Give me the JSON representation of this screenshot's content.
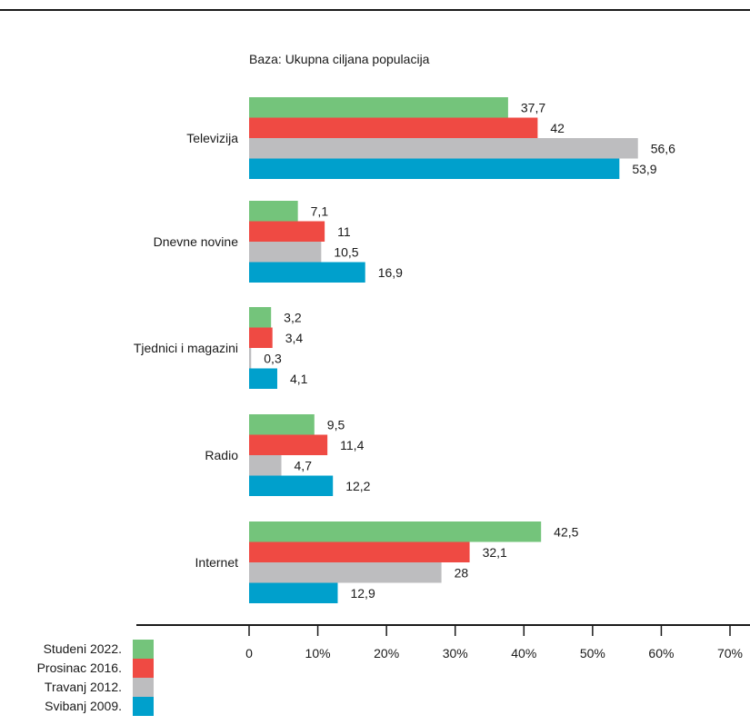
{
  "chart_data": {
    "type": "bar",
    "orientation": "horizontal",
    "subtitle": "Baza: Ukupna ciljana populacija",
    "categories": [
      "Televizija",
      "Dnevne novine",
      "Tjednici i magazini",
      "Radio",
      "Internet"
    ],
    "series": [
      {
        "name": "Studeni 2022.",
        "color": "#74c47b",
        "values": [
          37.7,
          7.1,
          3.2,
          9.5,
          42.5
        ],
        "labels": [
          "37,7",
          "7,1",
          "3,2",
          "9,5",
          "42,5"
        ]
      },
      {
        "name": "Prosinac 2016.",
        "color": "#ef4a43",
        "values": [
          42,
          11,
          3.4,
          11.4,
          32.1
        ],
        "labels": [
          "42",
          "11",
          "3,4",
          "11,4",
          "32,1"
        ]
      },
      {
        "name": "Travanj 2012.",
        "color": "#bdbdbf",
        "values": [
          56.6,
          10.5,
          0.3,
          4.7,
          28
        ],
        "labels": [
          "56,6",
          "10,5",
          "0,3",
          "4,7",
          "28"
        ]
      },
      {
        "name": "Svibanj 2009.",
        "color": "#00a0cc",
        "values": [
          53.9,
          16.9,
          4.1,
          12.2,
          12.9
        ],
        "labels": [
          "53,9",
          "16,9",
          "4,1",
          "12,2",
          "12,9"
        ]
      }
    ],
    "x_ticks": [
      "0",
      "10%",
      "20%",
      "30%",
      "40%",
      "50%",
      "60%",
      "70%"
    ],
    "xlim": [
      0,
      70
    ],
    "grid": false,
    "legend_position": "bottom-left"
  }
}
